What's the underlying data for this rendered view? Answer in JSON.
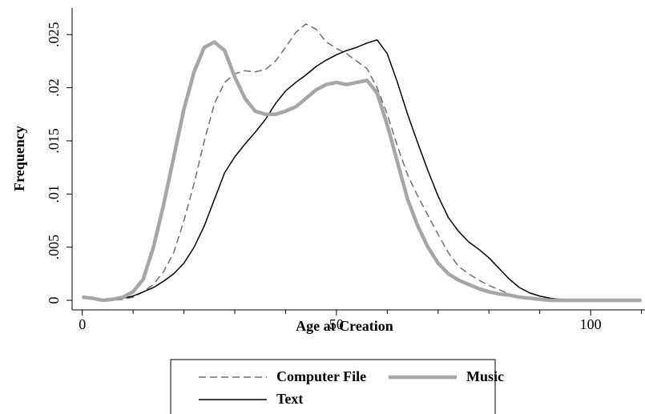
{
  "chart_data": {
    "type": "line",
    "xlabel": "Age at Creation",
    "ylabel": "Frequency",
    "x": [
      0,
      2,
      4,
      6,
      8,
      10,
      12,
      14,
      16,
      18,
      20,
      22,
      24,
      26,
      28,
      30,
      32,
      34,
      36,
      38,
      40,
      42,
      44,
      46,
      48,
      50,
      52,
      54,
      56,
      58,
      60,
      62,
      64,
      66,
      68,
      70,
      72,
      74,
      76,
      78,
      80,
      82,
      84,
      86,
      88,
      90,
      92,
      94,
      96,
      98,
      100,
      102,
      104,
      106,
      108,
      110
    ],
    "series": [
      {
        "name": "Computer File",
        "color": "#6e6e6e",
        "style": "dashed",
        "width": 1.5,
        "values": [
          0.0003,
          0.0002,
          0,
          0,
          0.0001,
          0.0003,
          0.0008,
          0.0015,
          0.0027,
          0.0045,
          0.0075,
          0.011,
          0.015,
          0.0185,
          0.0205,
          0.0213,
          0.0216,
          0.0215,
          0.0217,
          0.0225,
          0.0238,
          0.0252,
          0.026,
          0.0255,
          0.0243,
          0.0237,
          0.0232,
          0.0225,
          0.0218,
          0.02,
          0.0175,
          0.0145,
          0.0118,
          0.0098,
          0.008,
          0.0062,
          0.0045,
          0.0032,
          0.0025,
          0.0019,
          0.0014,
          0.001,
          0.0006,
          0.0004,
          0.0002,
          0.0001,
          0,
          0,
          0,
          0,
          0,
          0,
          0,
          0,
          0,
          0
        ]
      },
      {
        "name": "Music",
        "color": "#a6a6a6",
        "style": "solid",
        "width": 4.5,
        "values": [
          0.0003,
          0.0002,
          0,
          0.0001,
          0.0003,
          0.0008,
          0.002,
          0.005,
          0.009,
          0.0135,
          0.018,
          0.0215,
          0.0238,
          0.0243,
          0.0235,
          0.021,
          0.019,
          0.0178,
          0.0175,
          0.0175,
          0.0178,
          0.0182,
          0.019,
          0.0198,
          0.0203,
          0.0205,
          0.0203,
          0.0205,
          0.0207,
          0.0195,
          0.0165,
          0.013,
          0.0095,
          0.007,
          0.005,
          0.0035,
          0.0025,
          0.0019,
          0.0015,
          0.0011,
          0.0008,
          0.0006,
          0.0005,
          0.0003,
          0.0002,
          0.0001,
          0,
          0,
          0,
          0,
          0,
          0,
          0,
          0,
          0,
          0
        ]
      },
      {
        "name": "Text",
        "color": "#000000",
        "style": "solid",
        "width": 1.5,
        "values": [
          0.0003,
          0.0002,
          0,
          0.0001,
          0.0002,
          0.0004,
          0.0008,
          0.0012,
          0.0018,
          0.0025,
          0.0035,
          0.005,
          0.007,
          0.0095,
          0.012,
          0.0135,
          0.0147,
          0.0158,
          0.017,
          0.0185,
          0.0197,
          0.0205,
          0.0212,
          0.022,
          0.0226,
          0.0231,
          0.0235,
          0.0238,
          0.0242,
          0.0245,
          0.0232,
          0.0205,
          0.0175,
          0.0148,
          0.0122,
          0.0098,
          0.0078,
          0.0065,
          0.0055,
          0.0048,
          0.004,
          0.003,
          0.002,
          0.0012,
          0.0007,
          0.0004,
          0.0002,
          0.0001,
          0,
          0,
          0,
          0,
          0,
          0,
          0,
          0
        ]
      }
    ],
    "xlim": [
      -2,
      110.7
    ],
    "xticks": [
      0,
      50,
      100
    ],
    "xminorticks": [
      10,
      20,
      30,
      40,
      60,
      70,
      80,
      90,
      110
    ],
    "ylim": [
      -0.0009,
      0.0275
    ],
    "yticks": [
      0,
      {
        "value": 0.005,
        "label": ".005"
      },
      {
        "value": 0.01,
        "label": ".01"
      },
      {
        "value": 0.015,
        "label": ".015"
      },
      {
        "value": 0.02,
        "label": ".02"
      },
      {
        "value": 0.025,
        "label": ".025"
      }
    ],
    "grid": false,
    "legend": "bottom"
  }
}
